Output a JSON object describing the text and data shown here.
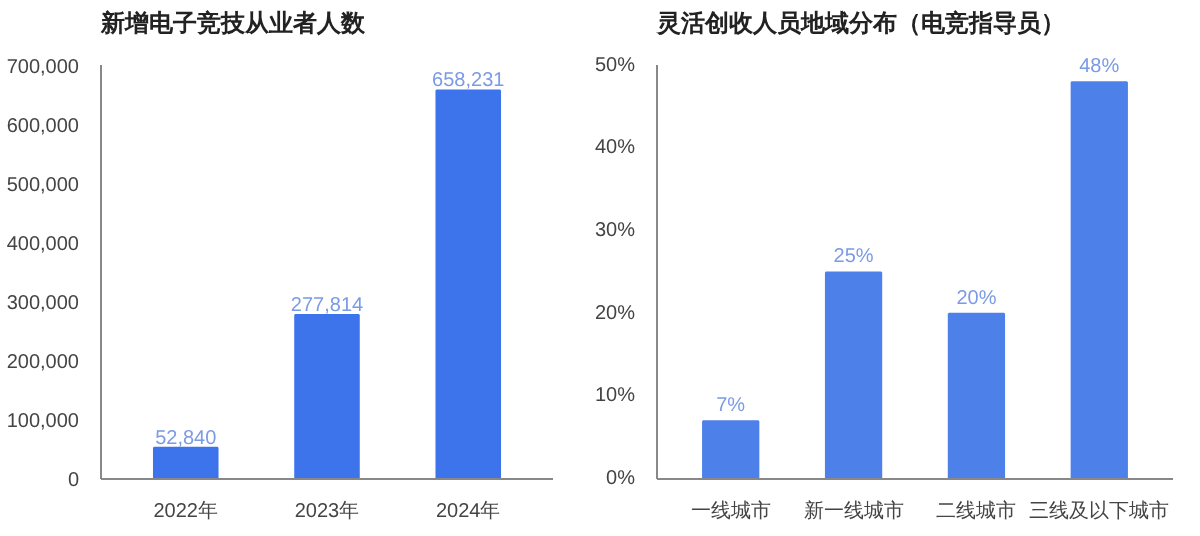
{
  "chart_data": [
    {
      "type": "bar",
      "title": "新增电子竞技从业者人数",
      "categories": [
        "2022年",
        "2023年",
        "2024年"
      ],
      "values": [
        52840,
        277814,
        658231
      ],
      "value_labels": [
        "52,840",
        "277,814",
        "658,231"
      ],
      "color": "#3d74ec",
      "ylim": [
        0,
        700000
      ],
      "yticks": [
        0,
        {
          "value": 100000,
          "label": "100,000"
        },
        {
          "value": 200000,
          "label": "200,000"
        },
        {
          "value": 300000,
          "label": "300,000"
        },
        {
          "value": 400000,
          "label": "400,000"
        },
        {
          "value": 500000,
          "label": "500,000"
        },
        {
          "value": 600000,
          "label": "600,000"
        },
        {
          "value": 700000,
          "label": "700,000"
        }
      ]
    },
    {
      "type": "bar",
      "title": "灵活创收人员地域分布（电竞指导员）",
      "categories": [
        "一线城市",
        "新一线城市",
        "二线城市",
        "三线及以下城市"
      ],
      "values": [
        7,
        25,
        20,
        48
      ],
      "value_labels": [
        "7%",
        "25%",
        "20%",
        "48%"
      ],
      "color": "#4e80ea",
      "ylim": [
        0,
        50
      ],
      "yticks": [
        {
          "value": 0,
          "label": "0%"
        },
        {
          "value": 10,
          "label": "10%"
        },
        {
          "value": 20,
          "label": "20%"
        },
        {
          "value": 30,
          "label": "30%"
        },
        {
          "value": 40,
          "label": "40%"
        },
        {
          "value": 50,
          "label": "50%"
        }
      ]
    }
  ]
}
